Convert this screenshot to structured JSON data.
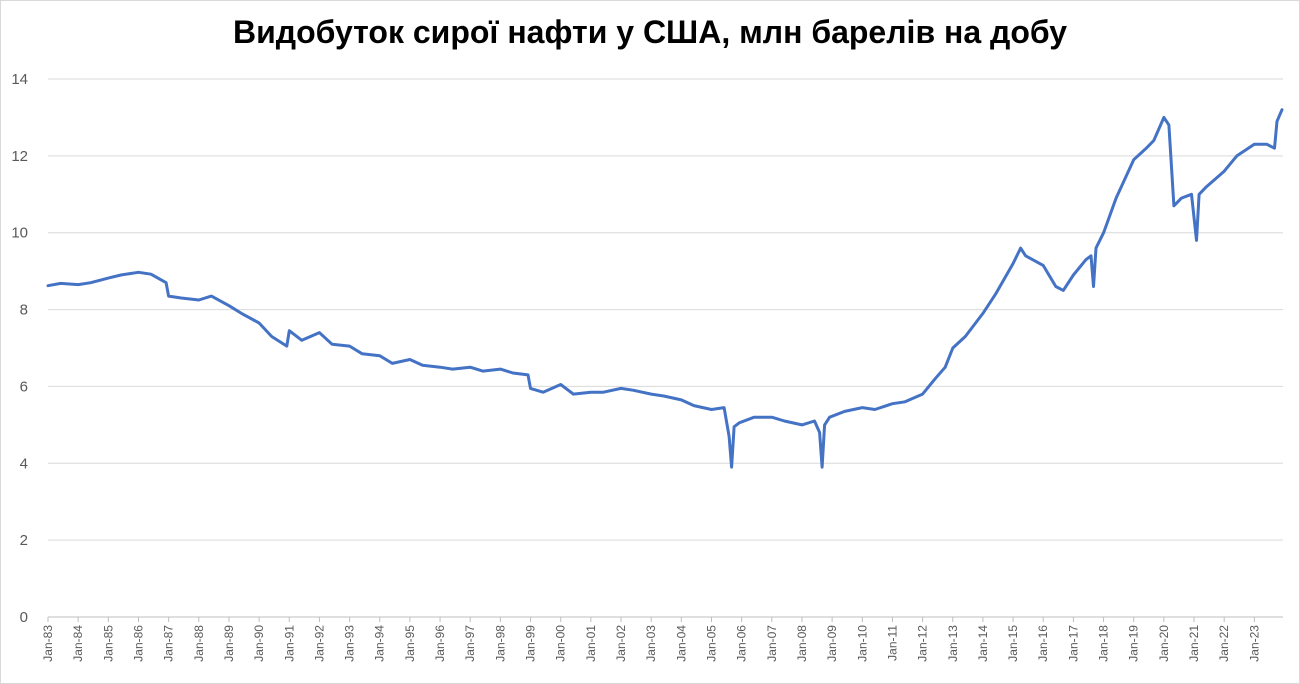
{
  "chart_data": {
    "type": "line",
    "title": "Видобуток сирої нафти у США, млн барелів на добу",
    "xlabel": "",
    "ylabel": "",
    "ylim": [
      0,
      14
    ],
    "yticks": [
      0,
      2,
      4,
      6,
      8,
      10,
      12,
      14
    ],
    "grid": true,
    "legend": "none",
    "line_color": "#4472C4",
    "x_tick_labels": [
      "Jan-83",
      "Jan-84",
      "Jan-85",
      "Jan-86",
      "Jan-87",
      "Jan-88",
      "Jan-89",
      "Jan-90",
      "Jan-91",
      "Jan-92",
      "Jan-93",
      "Jan-94",
      "Jan-95",
      "Jan-96",
      "Jan-97",
      "Jan-98",
      "Jan-99",
      "Jan-00",
      "Jan-01",
      "Jan-02",
      "Jan-03",
      "Jan-04",
      "Jan-05",
      "Jan-06",
      "Jan-07",
      "Jan-08",
      "Jan-09",
      "Jan-10",
      "Jan-11",
      "Jan-12",
      "Jan-13",
      "Jan-14",
      "Jan-15",
      "Jan-16",
      "Jan-17",
      "Jan-18",
      "Jan-19",
      "Jan-20",
      "Jan-21",
      "Jan-22",
      "Jan-23"
    ],
    "series": [
      {
        "x": [
          "1983-01",
          "1983-06",
          "1984-01",
          "1984-06",
          "1985-01",
          "1985-06",
          "1986-01",
          "1986-06",
          "1986-12",
          "1987-01",
          "1987-06",
          "1988-01",
          "1988-06",
          "1989-01",
          "1989-06",
          "1990-01",
          "1990-06",
          "1990-12",
          "1991-01",
          "1991-06",
          "1992-01",
          "1992-06",
          "1993-01",
          "1993-06",
          "1994-01",
          "1994-06",
          "1995-01",
          "1995-06",
          "1996-01",
          "1996-06",
          "1997-01",
          "1997-06",
          "1998-01",
          "1998-06",
          "1998-12",
          "1999-01",
          "1999-06",
          "2000-01",
          "2000-06",
          "2001-01",
          "2001-06",
          "2002-01",
          "2002-06",
          "2003-01",
          "2003-06",
          "2004-01",
          "2004-06",
          "2005-01",
          "2005-06",
          "2005-08",
          "2005-09",
          "2005-10",
          "2005-12",
          "2006-06",
          "2007-01",
          "2007-06",
          "2008-01",
          "2008-06",
          "2008-08",
          "2008-09",
          "2008-10",
          "2008-12",
          "2009-06",
          "2010-01",
          "2010-06",
          "2011-01",
          "2011-06",
          "2012-01",
          "2012-06",
          "2012-10",
          "2013-01",
          "2013-06",
          "2014-01",
          "2014-06",
          "2015-01",
          "2015-04",
          "2015-06",
          "2016-01",
          "2016-06",
          "2016-09",
          "2017-01",
          "2017-06",
          "2017-08",
          "2017-09",
          "2017-10",
          "2018-01",
          "2018-06",
          "2019-01",
          "2019-06",
          "2019-09",
          "2020-01",
          "2020-03",
          "2020-05",
          "2020-08",
          "2020-12",
          "2021-02",
          "2021-03",
          "2021-06",
          "2022-01",
          "2022-06",
          "2023-01",
          "2023-06",
          "2023-09",
          "2023-10",
          "2023-12"
        ],
        "values": [
          8.62,
          8.68,
          8.65,
          8.7,
          8.82,
          8.9,
          8.97,
          8.92,
          8.7,
          8.35,
          8.3,
          8.25,
          8.35,
          8.1,
          7.9,
          7.65,
          7.3,
          7.05,
          7.45,
          7.2,
          7.4,
          7.1,
          7.05,
          6.85,
          6.8,
          6.6,
          6.7,
          6.55,
          6.5,
          6.45,
          6.5,
          6.4,
          6.45,
          6.35,
          6.3,
          5.95,
          5.85,
          6.05,
          5.8,
          5.85,
          5.85,
          5.95,
          5.9,
          5.8,
          5.75,
          5.65,
          5.5,
          5.4,
          5.45,
          4.7,
          3.9,
          4.95,
          5.05,
          5.2,
          5.2,
          5.1,
          5.0,
          5.1,
          4.8,
          3.9,
          5.0,
          5.2,
          5.35,
          5.45,
          5.4,
          5.55,
          5.6,
          5.8,
          6.2,
          6.5,
          7.0,
          7.3,
          7.9,
          8.4,
          9.2,
          9.6,
          9.4,
          9.15,
          8.6,
          8.5,
          8.9,
          9.3,
          9.4,
          8.6,
          9.6,
          10.0,
          10.9,
          11.9,
          12.2,
          12.4,
          13.0,
          12.8,
          10.7,
          10.9,
          11.0,
          9.8,
          11.0,
          11.2,
          11.6,
          12.0,
          12.3,
          12.3,
          12.2,
          12.9,
          13.2
        ]
      }
    ]
  }
}
